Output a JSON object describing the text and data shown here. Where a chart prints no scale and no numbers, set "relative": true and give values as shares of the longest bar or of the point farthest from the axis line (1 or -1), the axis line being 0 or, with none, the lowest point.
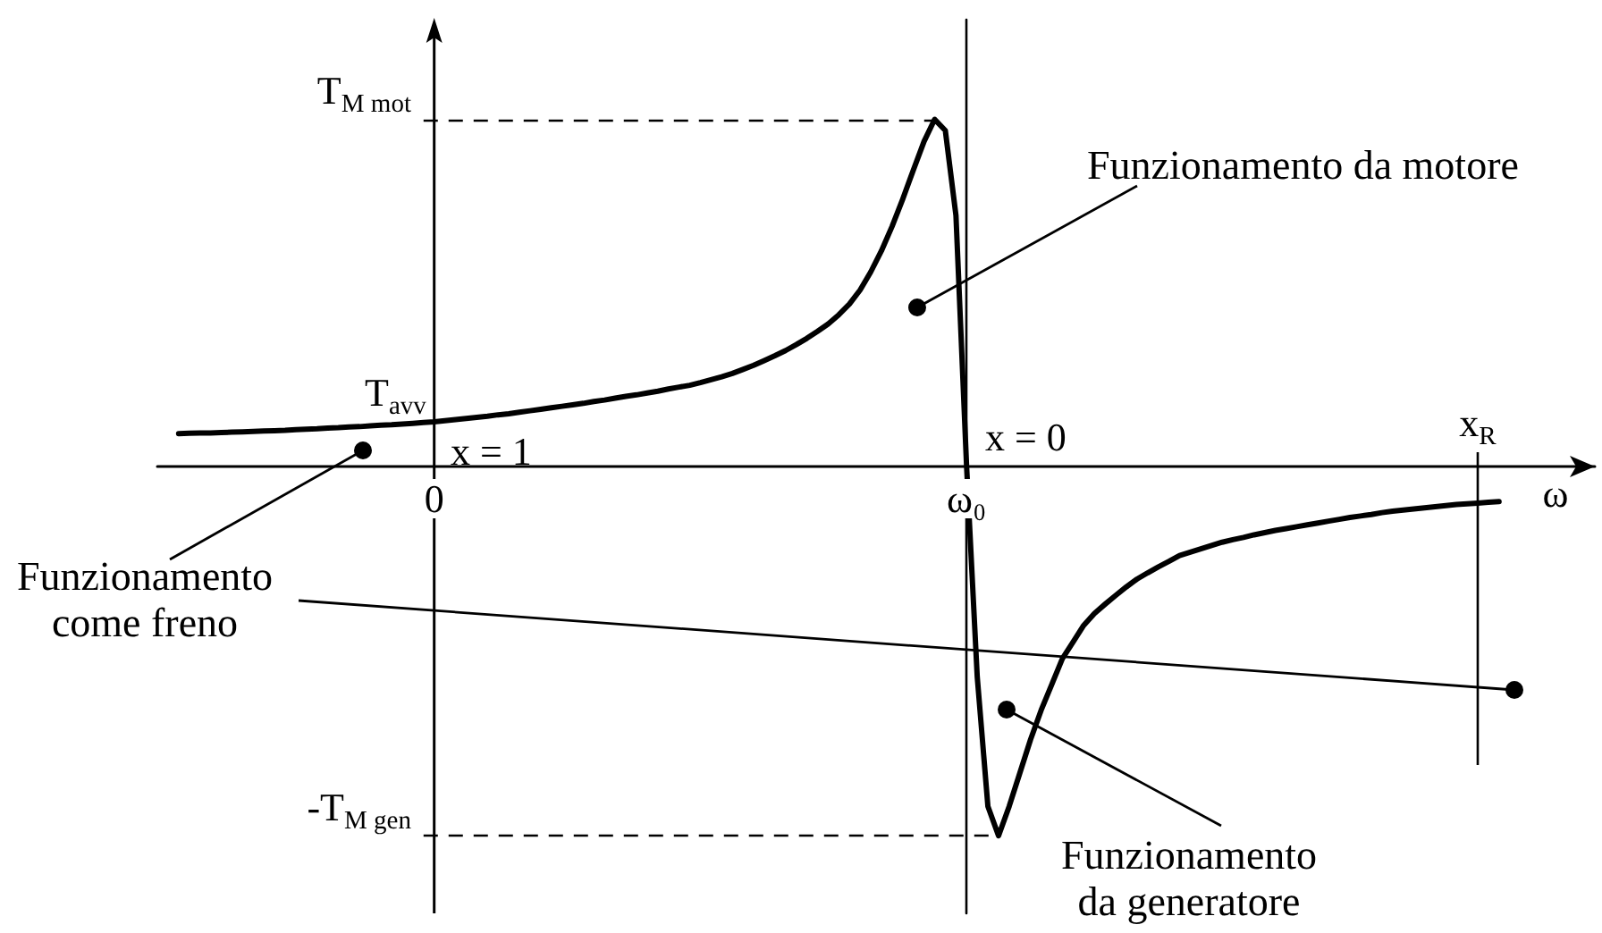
{
  "chart_data": {
    "type": "line",
    "relative": true,
    "xlabel": "ω",
    "color": "#000000",
    "categories": [
      null,
      null,
      null,
      null,
      null,
      null,
      null,
      null,
      null,
      null,
      null,
      null,
      null,
      null,
      null,
      null,
      null,
      null,
      null,
      null,
      null,
      null,
      null,
      null,
      null,
      null,
      "0",
      null,
      null,
      null,
      null,
      null,
      null,
      null,
      null,
      null,
      null,
      null,
      null,
      null,
      null,
      null,
      null,
      null,
      null,
      null,
      null,
      null,
      null,
      null,
      null,
      null,
      null,
      null,
      null,
      null,
      null,
      null,
      null,
      null,
      null,
      null,
      null,
      null,
      null,
      null,
      null,
      null,
      null,
      null,
      null,
      null,
      null,
      null,
      null,
      null,
      "ω₀",
      null,
      null,
      null,
      null,
      null,
      null,
      null,
      null,
      null,
      null,
      null,
      null,
      null,
      null,
      null,
      null,
      null,
      null,
      null,
      null,
      null,
      null,
      null,
      null,
      null,
      null,
      null,
      null,
      null,
      null,
      null,
      null,
      null,
      null,
      null,
      null,
      null,
      null,
      null,
      null,
      null,
      null,
      null,
      null,
      null,
      null,
      null,
      "x$_{R}$",
      null,
      null,
      null,
      null,
      null,
      null,
      null,
      null,
      null,
      null,
      null
    ],
    "values": [
      null,
      null,
      0.089,
      0.09,
      0.091,
      0.091,
      0.092,
      0.093,
      0.094,
      0.095,
      0.096,
      0.097,
      0.098,
      0.1,
      0.101,
      0.102,
      0.104,
      0.105,
      0.107,
      0.108,
      0.11,
      0.112,
      0.113,
      0.115,
      0.117,
      0.119,
      0.121,
      0.124,
      0.127,
      0.13,
      0.133,
      0.136,
      0.14,
      0.143,
      0.147,
      0.151,
      0.155,
      0.159,
      0.163,
      0.167,
      0.171,
      0.176,
      0.18,
      0.185,
      0.19,
      0.194,
      0.199,
      0.204,
      0.21,
      0.215,
      0.22,
      0.227,
      0.235,
      0.243,
      0.252,
      0.263,
      0.274,
      0.287,
      0.3,
      0.314,
      0.33,
      0.347,
      0.366,
      0.386,
      0.411,
      0.44,
      0.478,
      0.527,
      0.584,
      0.65,
      0.724,
      0.803,
      0.88,
      0.94,
      0.91,
      0.68,
      0,
      -0.57,
      -0.92,
      -1,
      -0.92,
      -0.83,
      -0.74,
      -0.66,
      -0.59,
      -0.52,
      -0.475,
      -0.43,
      -0.398,
      -0.373,
      -0.349,
      -0.326,
      -0.305,
      -0.288,
      -0.272,
      -0.257,
      -0.241,
      -0.232,
      -0.223,
      -0.214,
      -0.205,
      -0.198,
      -0.192,
      -0.185,
      -0.179,
      -0.173,
      -0.168,
      -0.163,
      -0.158,
      -0.153,
      -0.148,
      -0.143,
      -0.138,
      -0.134,
      -0.13,
      -0.125,
      -0.121,
      -0.118,
      -0.115,
      -0.112,
      -0.109,
      -0.106,
      -0.103,
      -0.101,
      -0.099,
      -0.097,
      -0.095,
      null,
      null,
      null,
      null,
      null,
      null,
      null,
      null,
      null
    ],
    "ref_lines": [
      {
        "axis": "y",
        "value": 0.94,
        "label": "T$_{M mot}$",
        "line_style": "dashed",
        "color": "#000000"
      },
      {
        "axis": "y",
        "value": -1,
        "label": "-T$_{M gen}$",
        "line_style": "dashed",
        "color": "#000000"
      },
      {
        "axis": "x",
        "value": "x$_{R}$",
        "color": "#000000"
      }
    ],
    "annotations": [
      "Funzionamento da motore",
      "Funzionamento come freno",
      "Funzionamento da generatore",
      "T$_{avv}$",
      "x = 1",
      "x = 0"
    ]
  }
}
